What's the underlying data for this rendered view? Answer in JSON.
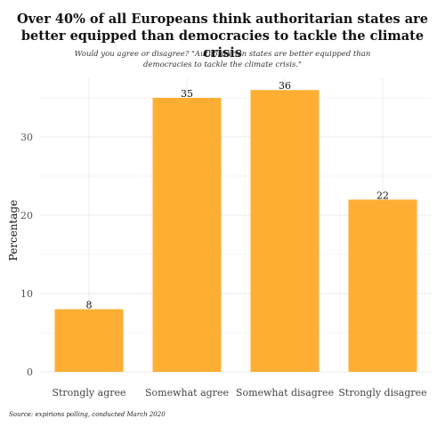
{
  "chart_data": {
    "type": "bar",
    "title": "Over 40% of all Europeans think authoritarian states are better equipped than democracies to tackle the climate crisis",
    "subtitle": "Would you agree or disagree? \"Authoritarian states are better equipped than democracies to tackle the climate crisis.\"",
    "caption": "Source: expirions polling, conducted March 2020",
    "xlabel": "",
    "ylabel": "Percentage",
    "categories": [
      "Strongly agree",
      "Somewhat agree",
      "Somewhat disagree",
      "Strongly disagree"
    ],
    "values": [
      8,
      35,
      36,
      22
    ],
    "data_labels": [
      "8",
      "35",
      "36",
      "22"
    ],
    "ylim": [
      0,
      37.5
    ],
    "yticks": [
      0,
      10,
      20,
      30
    ],
    "grid": true,
    "bar_color": "#FFAE34",
    "grid_color": "#EBEBEB"
  }
}
